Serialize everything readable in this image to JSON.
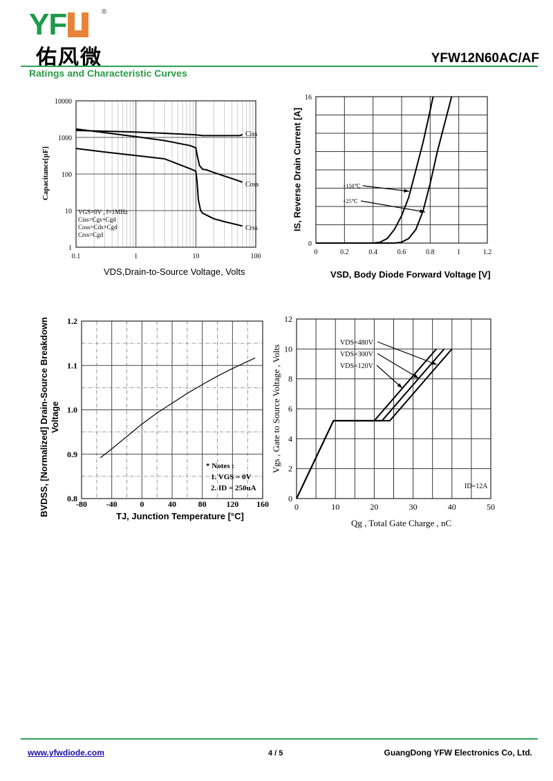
{
  "header": {
    "logo_text": "YFW",
    "logo_cn": "佑风微",
    "part_number": "YFW12N60AC/AF",
    "section_title": "Ratings and Characteristic Curves",
    "colors": {
      "green": "#2aa155",
      "orange": "#e8843a"
    }
  },
  "footer": {
    "website": "www.yfwdiode.com",
    "page": "4 / 5",
    "company": "GuangDong YFW Electronics Co, Ltd."
  },
  "chart_data": [
    {
      "type": "line",
      "title": "",
      "xlabel": "VDS,Drain-to-Source Voltage, Volts",
      "ylabel": "Capacitance[pF]",
      "xscale": "log",
      "yscale": "log",
      "xlim": [
        0.1,
        100
      ],
      "ylim": [
        1,
        10000
      ],
      "xticks": [
        "0.1",
        "1",
        "10",
        "100"
      ],
      "yticks": [
        "1",
        "10",
        "100",
        "1000",
        "10000"
      ],
      "grid": true,
      "legend_text": [
        "VGS=0V , f=1MHz",
        "Ciss=Cgs+Cgd",
        "Coss=Cds+Cgd",
        "Crss=Cgd"
      ],
      "series": [
        {
          "name": "Ciss",
          "x": [
            0.1,
            0.3,
            1,
            3,
            10,
            13,
            30,
            55,
            60
          ],
          "y": [
            1550,
            1480,
            1400,
            1300,
            1180,
            1120,
            1120,
            1130,
            1200
          ]
        },
        {
          "name": "Coss",
          "x": [
            0.1,
            0.3,
            1,
            3,
            8,
            10,
            10.5,
            11.5,
            13,
            15,
            20,
            40,
            60
          ],
          "y": [
            1700,
            1350,
            1050,
            820,
            600,
            520,
            330,
            170,
            135,
            130,
            110,
            75,
            60
          ]
        },
        {
          "name": "Crss",
          "x": [
            0.1,
            0.3,
            1,
            3,
            8,
            10,
            10.5,
            11,
            12,
            13,
            20,
            30,
            60
          ],
          "y": [
            500,
            400,
            320,
            260,
            140,
            120,
            60,
            20,
            10,
            8.5,
            6,
            5,
            3.8
          ]
        }
      ]
    },
    {
      "type": "line",
      "title": "",
      "xlabel": "VSD, Body Diode Forward Voltage [V]",
      "ylabel": "IS, Reverse Drain Current [A]",
      "xlim": [
        0,
        1.2
      ],
      "ylim": [
        0,
        16
      ],
      "xticks": [
        "0",
        "0.2",
        "0.4",
        "0.6",
        "0.8",
        "1",
        "1.2"
      ],
      "yticks": [
        "0",
        "16"
      ],
      "grid": true,
      "series": [
        {
          "name": "+150℃",
          "x": [
            0,
            0.4,
            0.45,
            0.5,
            0.55,
            0.6,
            0.65,
            0.7,
            0.75,
            0.8,
            0.82
          ],
          "y": [
            0,
            0,
            0.1,
            0.5,
            1.5,
            3,
            5,
            8,
            11,
            14.5,
            16
          ]
        },
        {
          "name": "+25℃",
          "x": [
            0,
            0.55,
            0.6,
            0.65,
            0.7,
            0.75,
            0.8,
            0.85,
            0.9,
            0.95
          ],
          "y": [
            0,
            0,
            0.1,
            0.5,
            1.5,
            3.5,
            6.5,
            10,
            13,
            16
          ]
        }
      ]
    },
    {
      "type": "line",
      "title": "",
      "xlabel": "TJ, Junction Temperature [°C]",
      "ylabel": "BVDSS, [Normalized] Drain-Source Breakdown Voltage",
      "xlim": [
        -80,
        160
      ],
      "ylim": [
        0.8,
        1.2
      ],
      "xticks": [
        "-80",
        "-40",
        "0",
        "40",
        "80",
        "120",
        "160"
      ],
      "yticks": [
        "0.8",
        "0.9",
        "1.0",
        "1.1",
        "1.2"
      ],
      "grid": true,
      "notes": [
        "* Notes :",
        "1. VGS = 0V",
        "2. ID = 250uA"
      ],
      "series": [
        {
          "name": "BVDSS",
          "x": [
            -55,
            -40,
            -20,
            0,
            20,
            40,
            60,
            80,
            100,
            120,
            150
          ],
          "y": [
            0.892,
            0.912,
            0.94,
            0.968,
            0.993,
            1.015,
            1.037,
            1.057,
            1.076,
            1.093,
            1.117
          ]
        }
      ]
    },
    {
      "type": "line",
      "title": "",
      "xlabel": "Qg , Total Gate Charge , nC",
      "ylabel": "Vgs , Gate to Source Voltage , Volts",
      "xlim": [
        0,
        50
      ],
      "ylim": [
        0,
        12
      ],
      "xticks": [
        "0",
        "10",
        "20",
        "30",
        "40",
        "50"
      ],
      "yticks": [
        "0",
        "2",
        "4",
        "6",
        "8",
        "10",
        "12"
      ],
      "grid": true,
      "annotation": "ID=12A",
      "series": [
        {
          "name": "VDS=480V",
          "x": [
            0,
            9.5,
            24,
            40
          ],
          "y": [
            0,
            5.2,
            5.2,
            10
          ]
        },
        {
          "name": "VDS=300V",
          "x": [
            0,
            9.5,
            22,
            38
          ],
          "y": [
            0,
            5.2,
            5.2,
            10
          ]
        },
        {
          "name": "VDS=120V",
          "x": [
            0,
            9.5,
            20,
            36
          ],
          "y": [
            0,
            5.2,
            5.2,
            10
          ]
        }
      ]
    }
  ]
}
